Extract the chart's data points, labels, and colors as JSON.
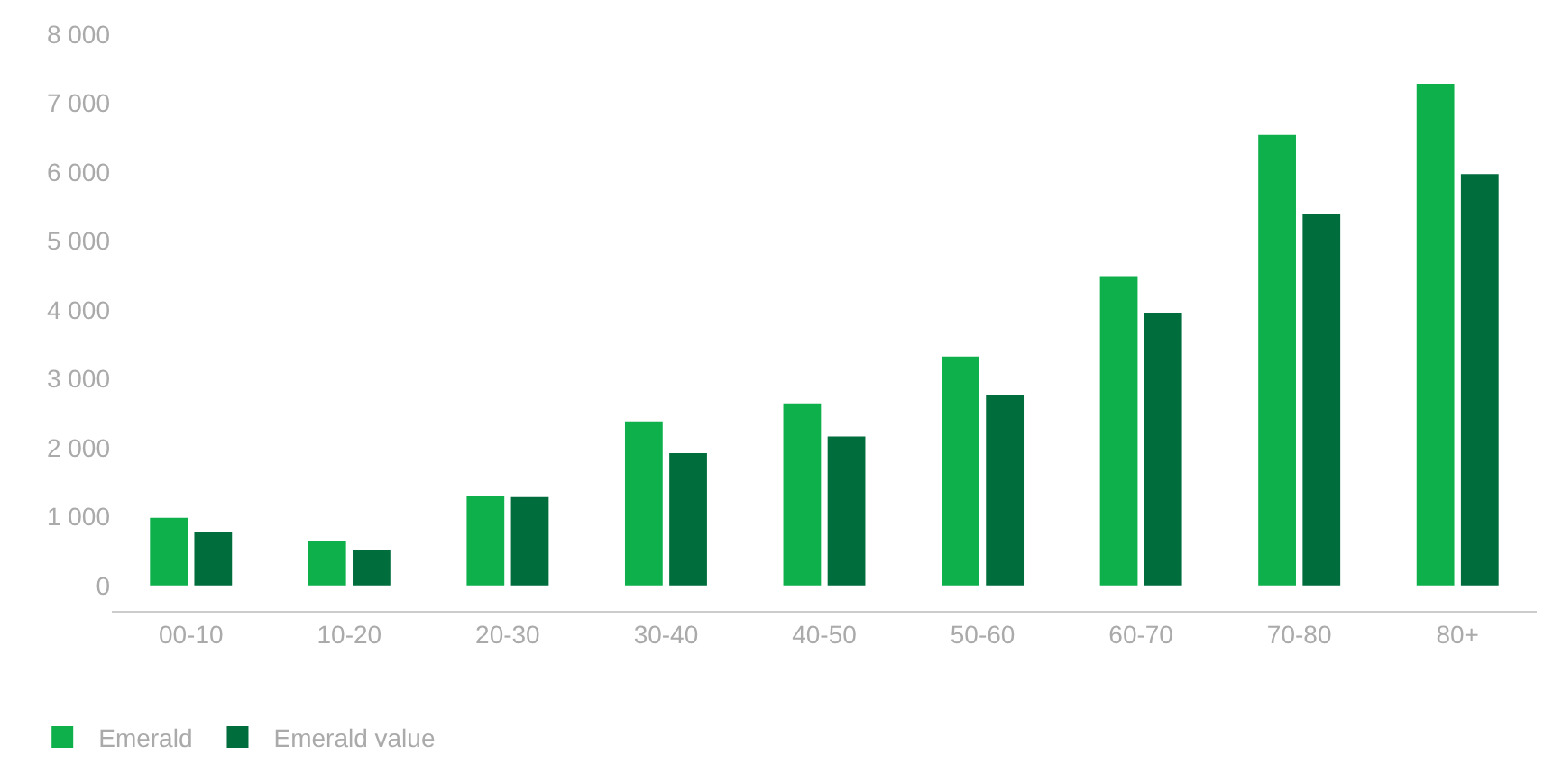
{
  "chart_data": {
    "type": "bar",
    "categories": [
      "00-10",
      "10-20",
      "20-30",
      "30-40",
      "40-50",
      "50-60",
      "60-70",
      "70-80",
      "80+"
    ],
    "series": [
      {
        "name": "Emerald",
        "color": "#0db04b",
        "values": [
          980,
          640,
          1300,
          2380,
          2640,
          3320,
          4490,
          6540,
          7280
        ]
      },
      {
        "name": "Emerald value",
        "color": "#006d3c",
        "values": [
          770,
          510,
          1280,
          1920,
          2160,
          2770,
          3960,
          5390,
          5970
        ]
      }
    ],
    "ylim": [
      -370,
      8000
    ],
    "yticks": [
      {
        "value": 0,
        "label": "0"
      },
      {
        "value": 1000,
        "label": "1 000"
      },
      {
        "value": 2000,
        "label": "2 000"
      },
      {
        "value": 3000,
        "label": "3 000"
      },
      {
        "value": 4000,
        "label": "4 000"
      },
      {
        "value": 5000,
        "label": "5 000"
      },
      {
        "value": 6000,
        "label": "6 000"
      },
      {
        "value": 7000,
        "label": "7 000"
      },
      {
        "value": 8000,
        "label": "8 000"
      }
    ],
    "grid": false,
    "legend": "bottom left"
  }
}
